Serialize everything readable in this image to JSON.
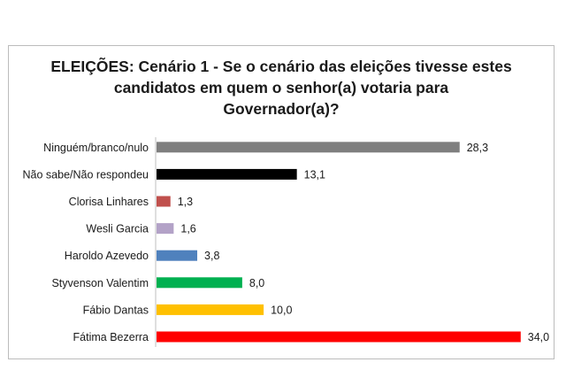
{
  "chart_data": {
    "type": "bar",
    "orientation": "horizontal",
    "title": "ELEIÇÕES: Cenário 1 - Se o cenário das eleições tivesse estes candidatos em quem o senhor(a) votaria  para Governador(a)?",
    "title_lines": [
      "ELEIÇÕES: Cenário 1 - Se o cenário das eleições tivesse estes",
      "candidatos em quem o senhor(a) votaria  para",
      "Governador(a)?"
    ],
    "xlim": [
      0,
      36
    ],
    "grid": false,
    "legend": "none",
    "bars": [
      {
        "category": "Ninguém/branco/nulo",
        "value": 28.3,
        "label": "28,3",
        "color": "#7f7f7f"
      },
      {
        "category": "Não sabe/Não respondeu",
        "value": 13.1,
        "label": "13,1",
        "color": "#000000"
      },
      {
        "category": "Clorisa Linhares",
        "value": 1.3,
        "label": "1,3",
        "color": "#c0504d"
      },
      {
        "category": "Wesli Garcia",
        "value": 1.6,
        "label": "1,6",
        "color": "#b3a2c7"
      },
      {
        "category": "Haroldo Azevedo",
        "value": 3.8,
        "label": "3,8",
        "color": "#4f81bd"
      },
      {
        "category": "Styvenson Valentim",
        "value": 8.0,
        "label": "8,0",
        "color": "#00b050"
      },
      {
        "category": "Fábio Dantas",
        "value": 10.0,
        "label": "10,0",
        "color": "#ffc000"
      },
      {
        "category": "Fátima Bezerra",
        "value": 34.0,
        "label": "34,0",
        "color": "#ff0000"
      }
    ]
  }
}
